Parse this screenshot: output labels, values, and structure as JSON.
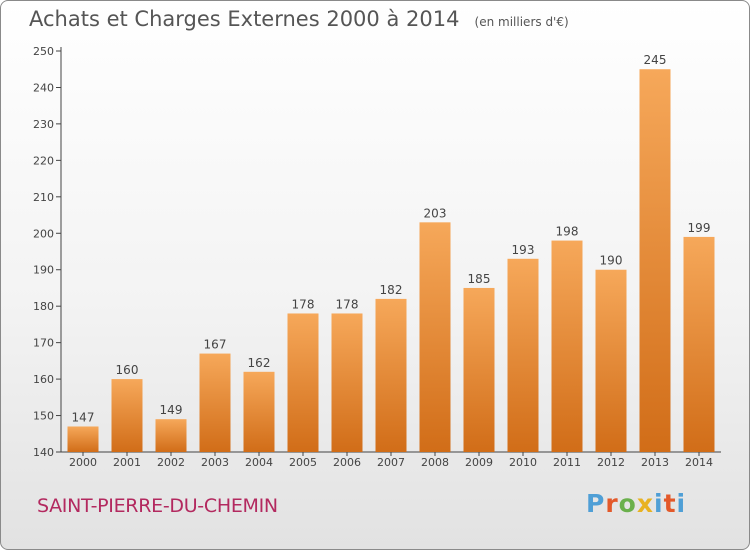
{
  "header": {
    "title": "Achats et Charges Externes 2000 à 2014",
    "unit": "(en milliers d'€)"
  },
  "footer": {
    "commune": "SAINT-PIERRE-DU-CHEMIN",
    "logo": "Proxiti"
  },
  "colors": {
    "bar_light": "#f6a85a",
    "bar_dark": "#d16d18",
    "title": "#555555",
    "commune": "#b3295f"
  },
  "chart_data": {
    "type": "bar",
    "title": "Achats et Charges Externes 2000 à 2014",
    "subtitle": "(en milliers d'€)",
    "categories": [
      "2000",
      "2001",
      "2002",
      "2003",
      "2004",
      "2005",
      "2006",
      "2007",
      "2008",
      "2009",
      "2010",
      "2011",
      "2012",
      "2013",
      "2014"
    ],
    "values": [
      147,
      160,
      149,
      167,
      162,
      178,
      178,
      182,
      203,
      185,
      193,
      198,
      190,
      245,
      199
    ],
    "ylim": [
      140,
      250
    ],
    "yticks": [
      140,
      150,
      160,
      170,
      180,
      190,
      200,
      210,
      220,
      230,
      240,
      250
    ],
    "grid": false,
    "data_labels": true
  }
}
